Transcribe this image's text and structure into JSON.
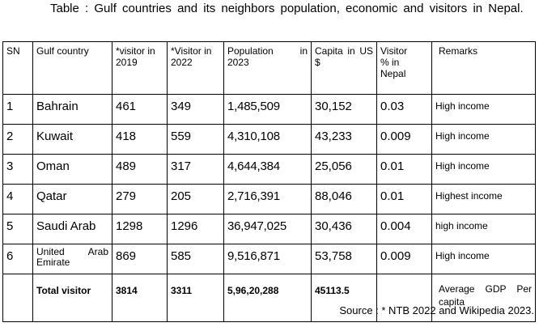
{
  "title": "Table : Gulf countries and its neighbors population, economic and visitors in Nepal.",
  "headers": {
    "sn": "SN",
    "country": "Gulf country",
    "visitor2019": "*visitor in 2019",
    "visitor2022": "*Visitor in 2022",
    "population": "Population in 2023",
    "capita": "Capita in US $",
    "visitor_pct": "Visitor % in Nepal",
    "remarks": "Remarks"
  },
  "rows": [
    {
      "sn": "1",
      "country": "Bahrain",
      "v2019": "461",
      "v2022": "349",
      "population": "1,485,509",
      "capita": "30,152",
      "pct": "0.03",
      "remark": "High income"
    },
    {
      "sn": "2",
      "country": "Kuwait",
      "v2019": "418",
      "v2022": "559",
      "population": "4,310,108",
      "capita": "43,233",
      "pct": "0.009",
      "remark": "High income"
    },
    {
      "sn": "3",
      "country": "Oman",
      "v2019": "489",
      "v2022": "317",
      "population": "4,644,384",
      "capita": "25,056",
      "pct": "0.01",
      "remark": "High income"
    },
    {
      "sn": "4",
      "country": "Qatar",
      "v2019": "279",
      "v2022": "205",
      "population": "2,716,391",
      "capita": "88,046",
      "pct": "0.01",
      "remark": "Highest income"
    },
    {
      "sn": "5",
      "country": "Saudi Arab",
      "v2019": "1298",
      "v2022": "1296",
      "population": "36,947,025",
      "capita": "30,436",
      "pct": "0.004",
      "remark": "high income"
    },
    {
      "sn": "6",
      "country": "United Arab Emirate",
      "v2019": "869",
      "v2022": "585",
      "population": "9,516,871",
      "capita": "53,758",
      "pct": "0.009",
      "remark": "High income"
    }
  ],
  "total": {
    "label": "Total visitor",
    "v2019": "3814",
    "v2022": "3311",
    "population": "5,96,20,288",
    "capita": "45113.5",
    "remark": "Average GDP Per capita"
  },
  "source": "Source : * NTB 2022 and Wikipedia 2023."
}
